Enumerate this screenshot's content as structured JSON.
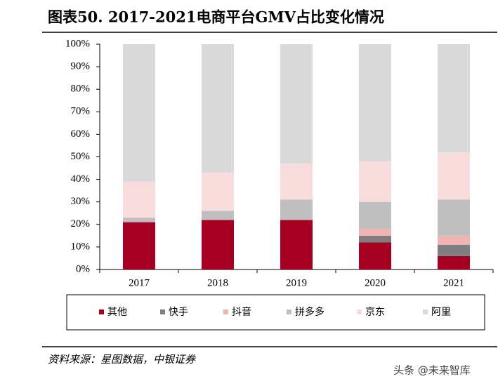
{
  "chart_data": {
    "type": "stacked_bar",
    "title": "图表50. 2017-2021电商平台GMV占比变化情况",
    "categories": [
      "2017",
      "2018",
      "2019",
      "2020",
      "2021"
    ],
    "series": [
      {
        "name": "其他",
        "color": "#a50021",
        "values": [
          21,
          22,
          22,
          12,
          6
        ]
      },
      {
        "name": "快手",
        "color": "#7f7f7f",
        "values": [
          0,
          0,
          0,
          3,
          5
        ]
      },
      {
        "name": "抖音",
        "color": "#f2b3b3",
        "values": [
          0,
          0,
          0,
          3,
          4
        ]
      },
      {
        "name": "拼多多",
        "color": "#bfbfbf",
        "values": [
          2,
          4,
          9,
          12,
          16
        ]
      },
      {
        "name": "京东",
        "color": "#f8dcdc",
        "values": [
          16,
          17,
          16,
          18,
          21
        ]
      },
      {
        "name": "阿里",
        "color": "#d9d9d9",
        "values": [
          61,
          57,
          53,
          52,
          48
        ]
      }
    ],
    "ylim": [
      0,
      100
    ],
    "yticks": [
      {
        "value": 0,
        "label": "0%"
      },
      {
        "value": 10,
        "label": "10%"
      },
      {
        "value": 20,
        "label": "20%"
      },
      {
        "value": 30,
        "label": "30%"
      },
      {
        "value": 40,
        "label": "40%"
      },
      {
        "value": 50,
        "label": "50%"
      },
      {
        "value": 60,
        "label": "60%"
      },
      {
        "value": 70,
        "label": "70%"
      },
      {
        "value": 80,
        "label": "80%"
      },
      {
        "value": 90,
        "label": "90%"
      },
      {
        "value": 100,
        "label": "100%"
      }
    ],
    "source": "资料来源：星图数据，中银证券",
    "watermark": "头条 @未来智库"
  }
}
